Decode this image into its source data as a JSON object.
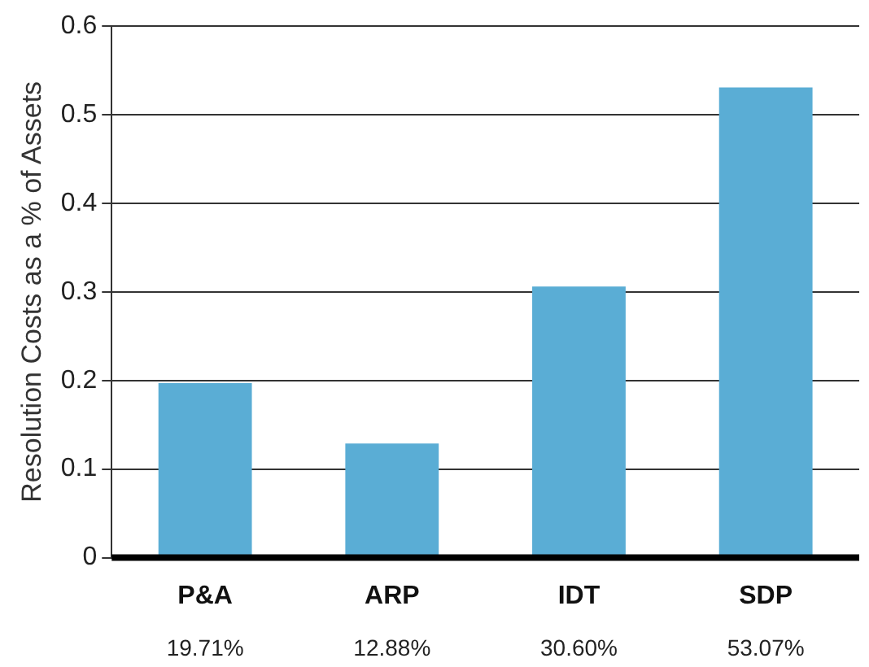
{
  "chart_data": {
    "type": "bar",
    "ylabel": "Resolution Costs as a % of Assets",
    "categories": [
      "P&A",
      "ARP",
      "IDT",
      "SDP"
    ],
    "values": [
      0.1971,
      0.1288,
      0.306,
      0.5307
    ],
    "value_labels": [
      "19.71%",
      "12.88%",
      "30.60%",
      "53.07%"
    ],
    "color": "#5aadd5",
    "ylim": [
      0,
      0.6
    ],
    "yticks": [
      0,
      0.1,
      0.2,
      0.3,
      0.4,
      0.5,
      0.6
    ],
    "grid": "y",
    "legend": false
  }
}
